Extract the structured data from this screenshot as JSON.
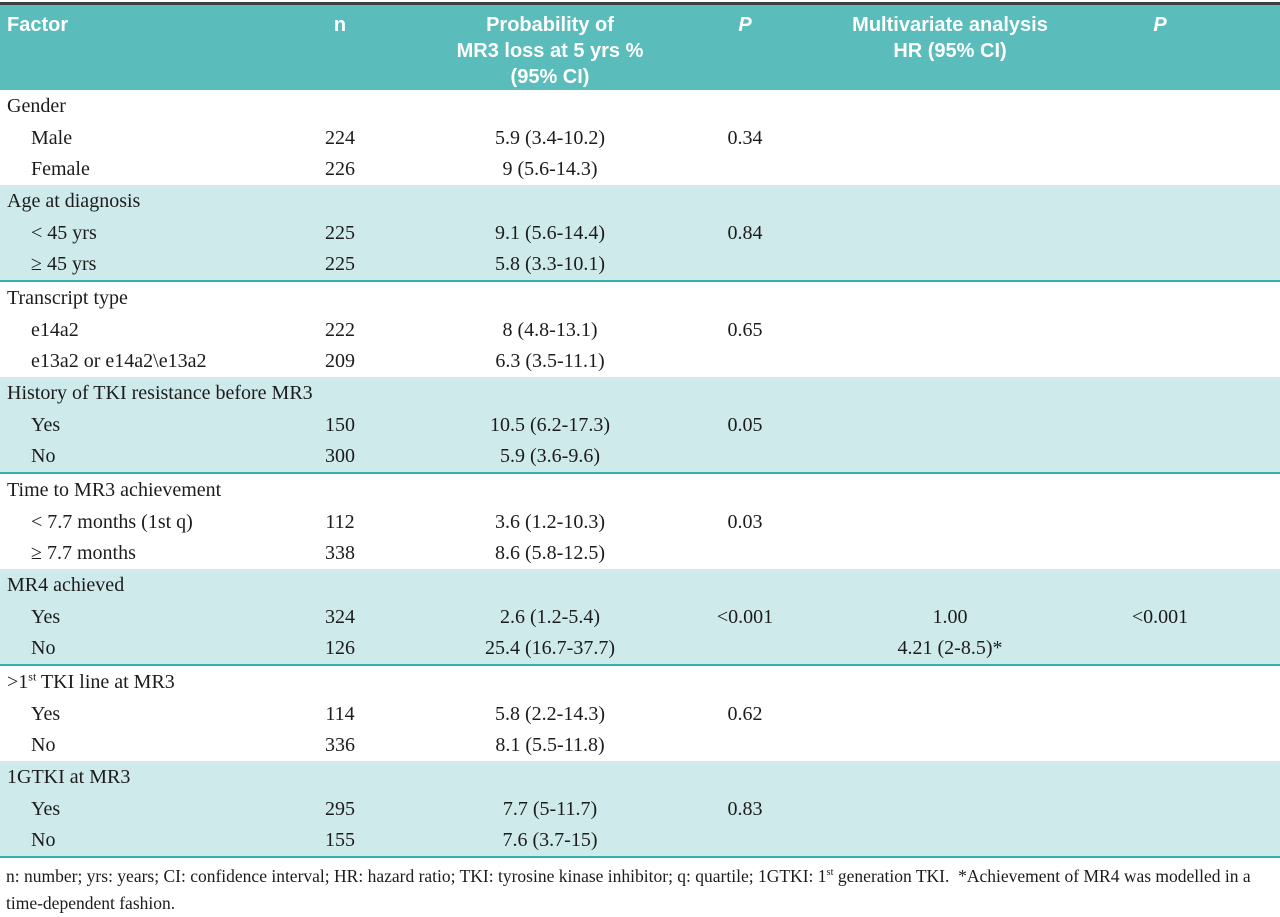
{
  "table": {
    "header": {
      "factor": "Factor",
      "n": "n",
      "prob_line1": "Probability of",
      "prob_line2": "MR3 loss at 5 yrs %",
      "prob_line3": "(95% CI)",
      "p1": "P",
      "mv_line1": "Multivariate analysis",
      "mv_line2": "HR (95% CI)",
      "p2": "P"
    },
    "colors": {
      "header_teal": "#5bbcbc",
      "band_teal": "#cfeaea",
      "rule_teal": "#2fafaf",
      "top_rule": "#3e3e3e"
    },
    "sections": [
      {
        "label": "Gender",
        "rows": [
          {
            "factor": "Male",
            "n": "224",
            "prob": "5.9 (3.4-10.2)",
            "p": "0.34",
            "hr": "",
            "p2": ""
          },
          {
            "factor": "Female",
            "n": "226",
            "prob": "9 (5.6-14.3)",
            "p": "",
            "hr": "",
            "p2": ""
          }
        ]
      },
      {
        "label": "Age at diagnosis",
        "rows": [
          {
            "factor": "< 45 yrs",
            "n": "225",
            "prob": "9.1 (5.6-14.4)",
            "p": "0.84",
            "hr": "",
            "p2": ""
          },
          {
            "factor": "≥ 45 yrs",
            "n": "225",
            "prob": "5.8 (3.3-10.1)",
            "p": "",
            "hr": "",
            "p2": ""
          }
        ]
      },
      {
        "label": "Transcript type",
        "rows": [
          {
            "factor": "e14a2",
            "n": "222",
            "prob": "8 (4.8-13.1)",
            "p": "0.65",
            "hr": "",
            "p2": ""
          },
          {
            "factor": "e13a2 or e14a2\\e13a2",
            "n": "209",
            "prob": "6.3 (3.5-11.1)",
            "p": "",
            "hr": "",
            "p2": ""
          }
        ]
      },
      {
        "label": "History of TKI resistance before MR3",
        "rows": [
          {
            "factor": "Yes",
            "n": "150",
            "prob": "10.5 (6.2-17.3)",
            "p": "0.05",
            "hr": "",
            "p2": ""
          },
          {
            "factor": "No",
            "n": "300",
            "prob": "5.9 (3.6-9.6)",
            "p": "",
            "hr": "",
            "p2": ""
          }
        ]
      },
      {
        "label": "Time to MR3 achievement",
        "rows": [
          {
            "factor": "< 7.7 months (1st q)",
            "n": "112",
            "prob": "3.6 (1.2-10.3)",
            "p": "0.03",
            "hr": "",
            "p2": ""
          },
          {
            "factor": "≥ 7.7 months",
            "n": "338",
            "prob": "8.6 (5.8-12.5)",
            "p": "",
            "hr": "",
            "p2": ""
          }
        ]
      },
      {
        "label": "MR4 achieved",
        "rows": [
          {
            "factor": "Yes",
            "n": "324",
            "prob": "2.6 (1.2-5.4)",
            "p": "<0.001",
            "hr": "1.00",
            "p2": "<0.001"
          },
          {
            "factor": "No",
            "n": "126",
            "prob": "25.4 (16.7-37.7)",
            "p": "",
            "hr": "4.21 (2-8.5)*",
            "p2": ""
          }
        ]
      },
      {
        "label_pre": ">1",
        "label_sup": "st",
        "label_post": " TKI line at MR3",
        "rows": [
          {
            "factor": "Yes",
            "n": "114",
            "prob": "5.8 (2.2-14.3)",
            "p": "0.62",
            "hr": "",
            "p2": ""
          },
          {
            "factor": "No",
            "n": "336",
            "prob": "8.1 (5.5-11.8)",
            "p": "",
            "hr": "",
            "p2": ""
          }
        ]
      },
      {
        "label": "1GTKI at MR3",
        "rows": [
          {
            "factor": "Yes",
            "n": "295",
            "prob": "7.7 (5-11.7)",
            "p": "0.83",
            "hr": "",
            "p2": ""
          },
          {
            "factor": "No",
            "n": "155",
            "prob": "7.6 (3.7-15)",
            "p": "",
            "hr": "",
            "p2": ""
          }
        ]
      }
    ]
  },
  "footnote": {
    "part1": "n: number; yrs: years; CI: confidence interval; HR: hazard ratio; TKI: tyrosine kinase inhibitor; q: quartile; 1GTKI: 1",
    "sup": "st",
    "part2": " generation TKI.  *Achievement of MR4 was modelled in a time-dependent fashion."
  }
}
